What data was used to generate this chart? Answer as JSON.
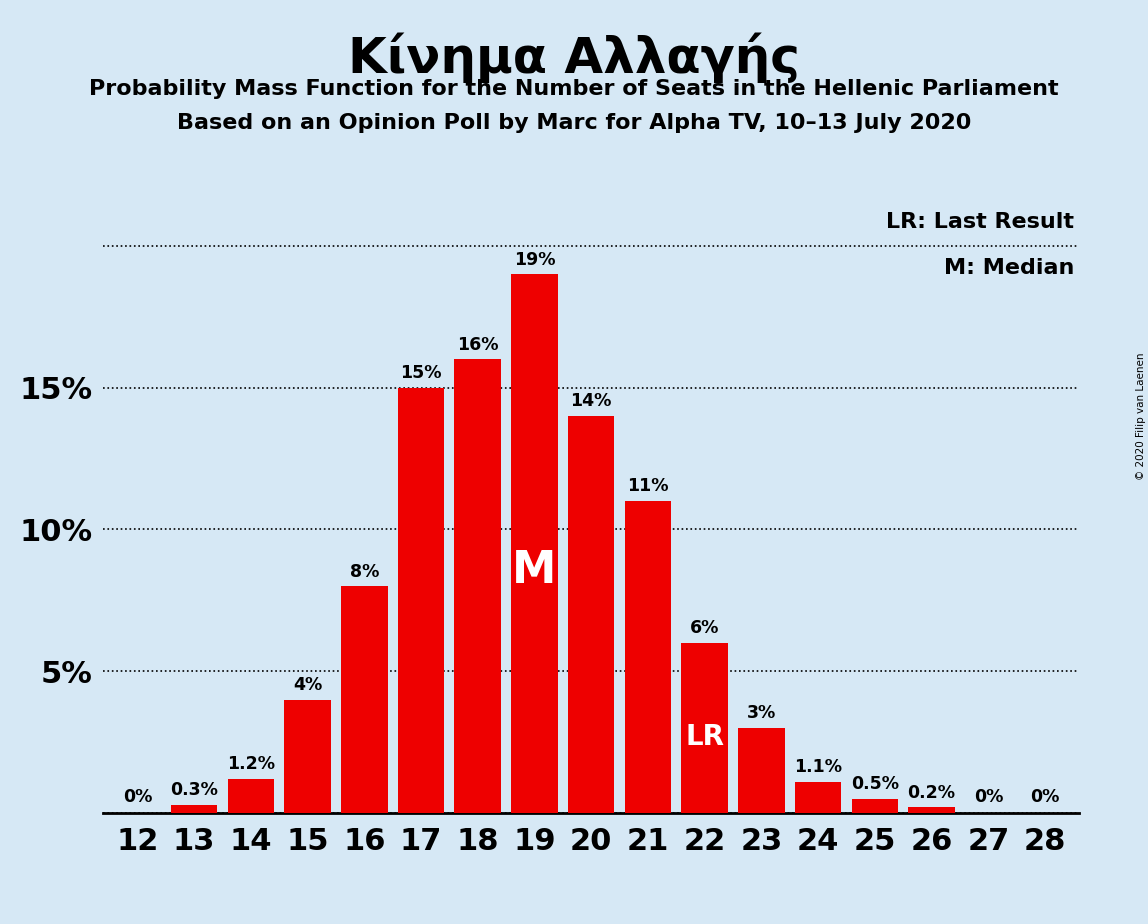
{
  "title": "Κίνημα Αλλαγής",
  "subtitle1": "Probability Mass Function for the Number of Seats in the Hellenic Parliament",
  "subtitle2": "Based on an Opinion Poll by Marc for Alpha TV, 10–13 July 2020",
  "copyright": "© 2020 Filip van Laenen",
  "legend_lr": "LR: Last Result",
  "legend_m": "M: Median",
  "seats": [
    12,
    13,
    14,
    15,
    16,
    17,
    18,
    19,
    20,
    21,
    22,
    23,
    24,
    25,
    26,
    27,
    28
  ],
  "probabilities": [
    0.0,
    0.3,
    1.2,
    4.0,
    8.0,
    15.0,
    16.0,
    19.0,
    14.0,
    11.0,
    6.0,
    3.0,
    1.1,
    0.5,
    0.2,
    0.0,
    0.0
  ],
  "labels": [
    "0%",
    "0.3%",
    "1.2%",
    "4%",
    "8%",
    "15%",
    "16%",
    "19%",
    "14%",
    "11%",
    "6%",
    "3%",
    "1.1%",
    "0.5%",
    "0.2%",
    "0%",
    "0%"
  ],
  "bar_color": "#ee0000",
  "background_color": "#d6e8f5",
  "median_seat": 19,
  "lr_seat": 22,
  "yticks": [
    0,
    5,
    10,
    15,
    20
  ],
  "ytick_labels": [
    "",
    "5%",
    "10%",
    "15%",
    ""
  ],
  "ylim": [
    0,
    21.5
  ]
}
